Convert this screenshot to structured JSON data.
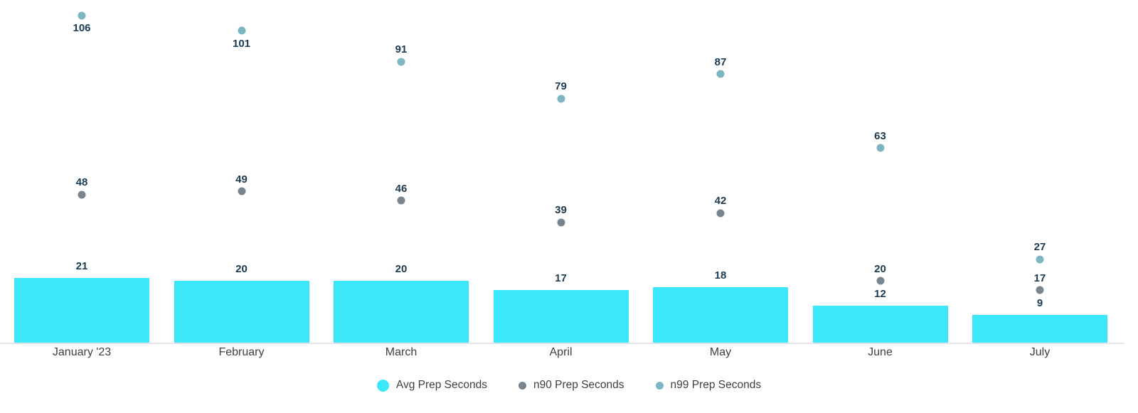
{
  "chart_data": {
    "type": "bar",
    "title": "",
    "xlabel": "",
    "ylabel": "",
    "categories": [
      "January '23",
      "February",
      "March",
      "April",
      "May",
      "June",
      "July"
    ],
    "series": [
      {
        "name": "Avg Prep Seconds",
        "render": "bar",
        "color": "#3BE8FA",
        "values": [
          21,
          20,
          20,
          17,
          18,
          12,
          9
        ]
      },
      {
        "name": "n90 Prep Seconds",
        "render": "point",
        "color": "#78858F",
        "values": [
          48,
          49,
          46,
          39,
          42,
          20,
          17
        ]
      },
      {
        "name": "n99 Prep Seconds",
        "render": "point",
        "color": "#7DB6C3",
        "values": [
          106,
          101,
          91,
          79,
          87,
          63,
          27
        ]
      }
    ],
    "ylim": [
      0,
      111
    ],
    "grid": false,
    "axis_line_color": "#E2E4EC",
    "data_labels": true,
    "data_label_color": "#1B3B52",
    "legend_position": "bottom"
  }
}
